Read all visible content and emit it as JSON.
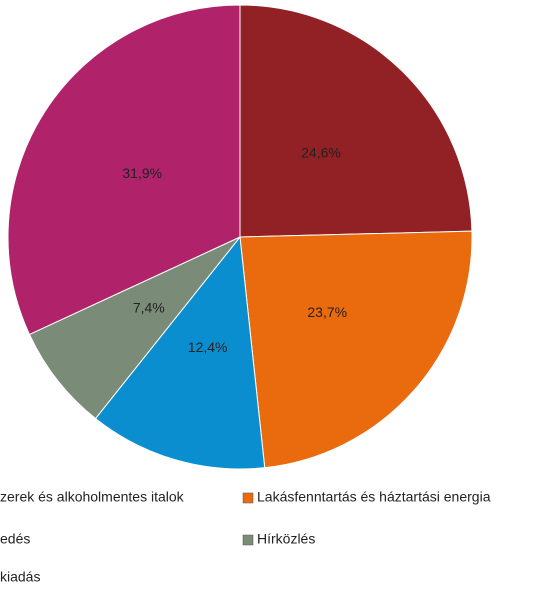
{
  "chart_data": {
    "type": "pie",
    "categories": [
      "zerek és alkoholmentes italok",
      "Lakásfenntartás és háztartási energia",
      "edés",
      "Hírközlés",
      "kiadás"
    ],
    "values": [
      24.6,
      23.7,
      12.4,
      7.4,
      31.9
    ],
    "value_labels": [
      "24,6%",
      "23,7%",
      "12,4%",
      "7,4%",
      "31,9%"
    ],
    "colors": [
      "#922125",
      "#ea6a0e",
      "#0b8ecf",
      "#7a8b78",
      "#b0236a"
    ]
  }
}
